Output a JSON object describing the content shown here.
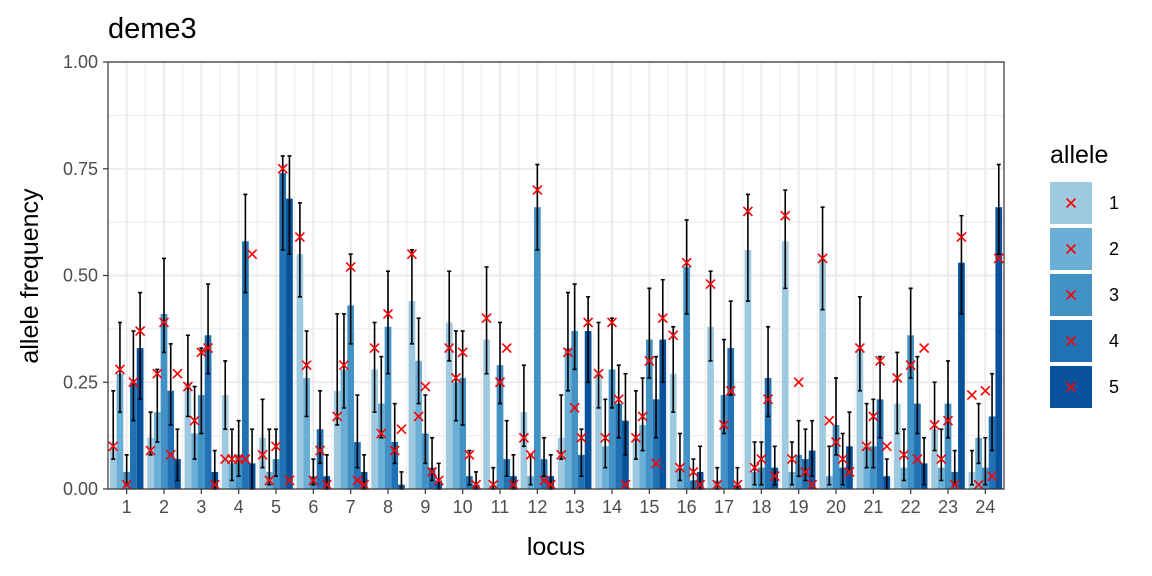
{
  "chart_data": {
    "type": "bar",
    "title": "deme3",
    "xlabel": "locus",
    "ylabel": "allele frequency",
    "ylim": [
      0,
      1
    ],
    "yticks": [
      0,
      0.25,
      0.5,
      0.75,
      1
    ],
    "ytick_labels": [
      "0.00",
      "0.25",
      "0.50",
      "0.75",
      "1.00"
    ],
    "categories": [
      "1",
      "2",
      "3",
      "4",
      "5",
      "6",
      "7",
      "8",
      "9",
      "10",
      "11",
      "12",
      "13",
      "14",
      "15",
      "16",
      "17",
      "18",
      "19",
      "20",
      "21",
      "22",
      "23",
      "24"
    ],
    "legend": {
      "title": "allele",
      "position": "right"
    },
    "marker_label": "×",
    "series": [
      {
        "name": "1",
        "color": "#9ecae1",
        "values": [
          0.1,
          0.12,
          0.25,
          0.22,
          0.12,
          0.55,
          0.23,
          0.28,
          0.44,
          0.39,
          0.35,
          0.18,
          0.12,
          0.27,
          0.12,
          0.27,
          0.38,
          0.56,
          0.58,
          0.54,
          0.33,
          0.2,
          0.14,
          0.04
        ],
        "err_lo": [
          0.07,
          0.08,
          0.17,
          0.14,
          0.05,
          0.45,
          0.15,
          0.18,
          0.34,
          0.3,
          0.27,
          0.1,
          0.07,
          0.19,
          0.07,
          0.18,
          0.3,
          0.44,
          0.47,
          0.42,
          0.23,
          0.13,
          0.09,
          0.01
        ],
        "err_hi": [
          0.23,
          0.18,
          0.36,
          0.3,
          0.21,
          0.67,
          0.41,
          0.39,
          0.56,
          0.51,
          0.52,
          0.29,
          0.22,
          0.39,
          0.23,
          0.38,
          0.51,
          0.69,
          0.7,
          0.66,
          0.45,
          0.32,
          0.25,
          0.09
        ],
        "markers": [
          0.1,
          0.09,
          0.24,
          0.07,
          0.08,
          0.59,
          0.17,
          0.33,
          0.55,
          0.33,
          0.4,
          0.12,
          0.08,
          0.27,
          0.12,
          0.36,
          0.48,
          0.65,
          0.64,
          0.54,
          0.33,
          0.26,
          0.15,
          0.22
        ]
      },
      {
        "name": "2",
        "color": "#6baed6",
        "values": [
          0.27,
          0.18,
          0.13,
          0.06,
          0.04,
          0.26,
          0.28,
          0.2,
          0.3,
          0.25,
          0.01,
          0.03,
          0.33,
          0.1,
          0.15,
          0.05,
          0.02,
          0.04,
          0.04,
          0.03,
          0.1,
          0.05,
          0.05,
          0.12
        ],
        "err_lo": [
          0.18,
          0.11,
          0.07,
          0.02,
          0.01,
          0.17,
          0.19,
          0.12,
          0.2,
          0.16,
          0.0,
          0.01,
          0.23,
          0.05,
          0.09,
          0.02,
          0.0,
          0.01,
          0.01,
          0.01,
          0.05,
          0.02,
          0.02,
          0.06
        ],
        "err_hi": [
          0.39,
          0.28,
          0.24,
          0.14,
          0.14,
          0.37,
          0.41,
          0.31,
          0.4,
          0.37,
          0.05,
          0.08,
          0.46,
          0.21,
          0.26,
          0.13,
          0.05,
          0.11,
          0.11,
          0.1,
          0.2,
          0.14,
          0.14,
          0.2
        ],
        "markers": [
          0.28,
          0.27,
          0.16,
          0.07,
          0.02,
          0.29,
          0.29,
          0.13,
          0.17,
          0.26,
          0.01,
          0.08,
          0.32,
          0.12,
          0.17,
          0.05,
          0.01,
          0.05,
          0.07,
          0.16,
          0.1,
          0.08,
          0.07,
          0.01
        ]
      },
      {
        "name": "3",
        "color": "#4292c6",
        "values": [
          0.04,
          0.41,
          0.22,
          0.08,
          0.07,
          0.03,
          0.43,
          0.38,
          0.13,
          0.26,
          0.29,
          0.66,
          0.37,
          0.28,
          0.35,
          0.52,
          0.22,
          0.05,
          0.08,
          0.15,
          0.1,
          0.36,
          0.2,
          0.05
        ],
        "err_lo": [
          0.01,
          0.32,
          0.13,
          0.03,
          0.03,
          0.01,
          0.34,
          0.27,
          0.06,
          0.15,
          0.2,
          0.56,
          0.28,
          0.19,
          0.26,
          0.41,
          0.13,
          0.01,
          0.03,
          0.08,
          0.05,
          0.26,
          0.12,
          0.01
        ],
        "err_hi": [
          0.08,
          0.54,
          0.33,
          0.16,
          0.14,
          0.07,
          0.55,
          0.51,
          0.22,
          0.37,
          0.39,
          0.76,
          0.48,
          0.4,
          0.47,
          0.63,
          0.35,
          0.11,
          0.16,
          0.26,
          0.21,
          0.47,
          0.3,
          0.12
        ],
        "markers": [
          0.01,
          0.39,
          0.32,
          0.07,
          0.1,
          0.02,
          0.52,
          0.41,
          0.24,
          0.32,
          0.25,
          0.7,
          0.19,
          0.39,
          0.3,
          0.53,
          0.15,
          0.07,
          0.25,
          0.11,
          0.17,
          0.29,
          0.16,
          0.23
        ]
      },
      {
        "name": "4",
        "color": "#2171b5",
        "values": [
          0.25,
          0.23,
          0.36,
          0.58,
          0.74,
          0.14,
          0.11,
          0.11,
          0.05,
          0.03,
          0.07,
          0.07,
          0.08,
          0.2,
          0.21,
          0.02,
          0.33,
          0.26,
          0.07,
          0.05,
          0.21,
          0.2,
          0.04,
          0.17
        ],
        "err_lo": [
          0.16,
          0.15,
          0.27,
          0.46,
          0.56,
          0.06,
          0.05,
          0.06,
          0.02,
          0.01,
          0.03,
          0.03,
          0.03,
          0.12,
          0.12,
          0.0,
          0.22,
          0.17,
          0.02,
          0.01,
          0.12,
          0.13,
          0.01,
          0.09
        ],
        "err_hi": [
          0.37,
          0.34,
          0.48,
          0.69,
          0.78,
          0.23,
          0.22,
          0.2,
          0.12,
          0.09,
          0.16,
          0.12,
          0.14,
          0.29,
          0.31,
          0.07,
          0.44,
          0.38,
          0.14,
          0.13,
          0.31,
          0.31,
          0.09,
          0.27
        ],
        "markers": [
          0.25,
          0.08,
          0.33,
          0.07,
          0.75,
          0.09,
          0.02,
          0.09,
          0.04,
          0.08,
          0.33,
          0.02,
          0.12,
          0.21,
          0.06,
          0.04,
          0.23,
          0.21,
          0.04,
          0.07,
          0.3,
          0.07,
          0.01,
          0.03
        ]
      },
      {
        "name": "5",
        "color": "#08519c",
        "values": [
          0.33,
          0.07,
          0.04,
          0.06,
          0.68,
          0.03,
          0.04,
          0.01,
          0.02,
          0.01,
          0.03,
          0.03,
          0.37,
          0.16,
          0.35,
          0.04,
          0.01,
          0.05,
          0.09,
          0.1,
          0.03,
          0.06,
          0.53,
          0.66
        ],
        "err_lo": [
          0.21,
          0.02,
          0.0,
          0.0,
          0.55,
          0.0,
          0.0,
          0.0,
          0.0,
          0.0,
          0.0,
          0.0,
          0.25,
          0.08,
          0.25,
          0.0,
          0.0,
          0.01,
          0.03,
          0.04,
          0.0,
          0.01,
          0.41,
          0.55
        ],
        "err_hi": [
          0.46,
          0.14,
          0.09,
          0.14,
          0.78,
          0.08,
          0.08,
          0.04,
          0.06,
          0.04,
          0.08,
          0.08,
          0.45,
          0.27,
          0.49,
          0.1,
          0.05,
          0.1,
          0.16,
          0.18,
          0.07,
          0.12,
          0.64,
          0.76
        ],
        "markers": [
          0.37,
          0.27,
          0.01,
          0.55,
          0.02,
          0.01,
          0.01,
          0.14,
          0.02,
          0.01,
          0.01,
          0.01,
          0.39,
          0.01,
          0.4,
          0.01,
          0.01,
          0.03,
          0.01,
          0.04,
          0.1,
          0.33,
          0.59,
          0.54
        ]
      }
    ]
  }
}
